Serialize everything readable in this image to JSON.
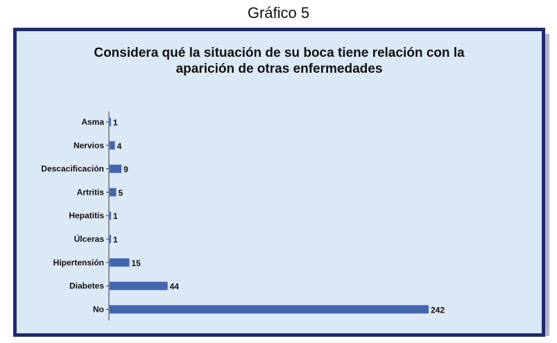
{
  "caption": "Gráfico 5",
  "chart_data": {
    "type": "bar",
    "orientation": "horizontal",
    "title_line1": "Considera qué la situación de su boca tiene relación con la",
    "title_line2": "aparición de otras enfermedades",
    "categories": [
      "Asma",
      "Nervios",
      "Descacificación",
      "Artritis",
      "Hepatitis",
      "Úlceras",
      "Hipertensión",
      "Diabetes",
      "No"
    ],
    "values": [
      1,
      4,
      9,
      5,
      1,
      1,
      15,
      44,
      242
    ],
    "xlim": [
      0,
      242
    ],
    "grid": false,
    "legend": "none",
    "colors": {
      "bar": "#4466b0",
      "background": "#dbe8f6",
      "frame": "#1f2a6e"
    }
  }
}
